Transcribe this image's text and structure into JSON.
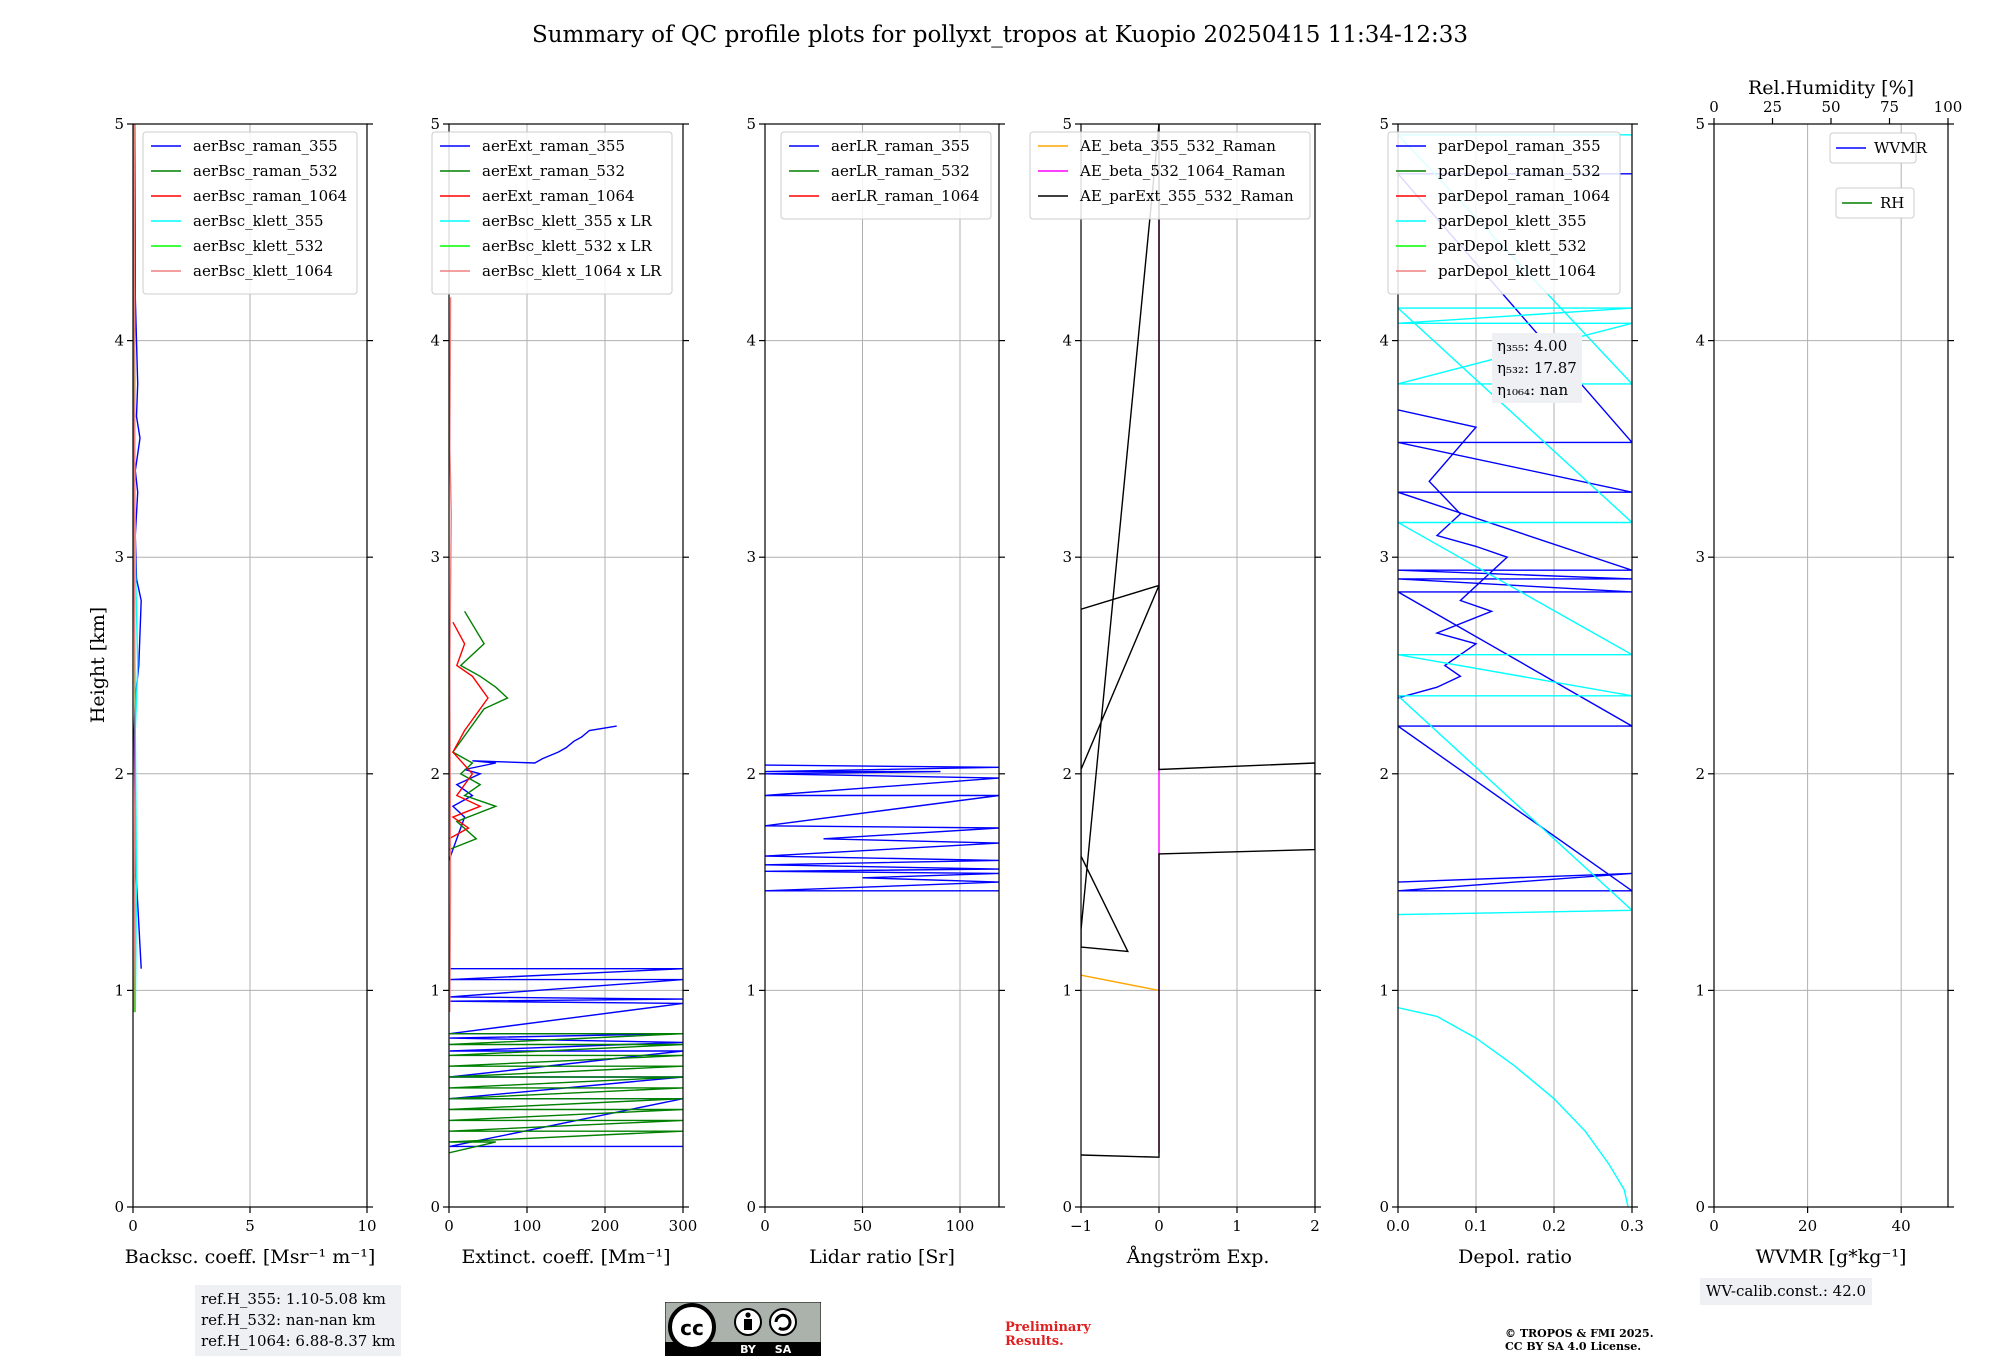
{
  "title": "Summary of QC profile plots for pollyxt_tropos at Kuopio 20250415 11:34-12:33",
  "colors": {
    "blue": "#0000ff",
    "green": "#008000",
    "red": "#ff0000",
    "cyan": "#00ffff",
    "lime": "#00ff00",
    "salmon": "#f08080",
    "orange": "#ffa500",
    "magenta": "#ff00ff",
    "black": "#000000"
  },
  "chart_data": [
    {
      "type": "line",
      "xlabel": "Backsc. coeff. [Msr⁻¹ m⁻¹]",
      "ylabel": "Height [km]",
      "xlim": [
        0,
        10
      ],
      "ylim": [
        0,
        5
      ],
      "xticks": [
        "0",
        "5",
        "10"
      ],
      "yticks": [
        "0",
        "1",
        "2",
        "3",
        "4",
        "5"
      ],
      "legend": [
        "aerBsc_raman_355",
        "aerBsc_raman_532",
        "aerBsc_raman_1064",
        "aerBsc_klett_355",
        "aerBsc_klett_532",
        "aerBsc_klett_1064"
      ],
      "series": [
        {
          "name": "aerBsc_raman_355",
          "color": "#0000ff",
          "x": [
            0.35,
            0.2,
            0.1,
            0.05,
            0.1,
            0.25,
            0.35,
            0.15,
            0.1,
            0.2,
            0.1,
            0.3,
            0.15,
            0.2,
            0.1,
            0.1
          ],
          "y": [
            1.1,
            1.4,
            1.6,
            2.2,
            2.35,
            2.5,
            2.8,
            2.9,
            3.1,
            3.3,
            3.4,
            3.55,
            3.65,
            3.8,
            4.2,
            5.0
          ]
        },
        {
          "name": "aerBsc_klett_355",
          "color": "#00ffff",
          "x": [
            0.1,
            0.15,
            0.1,
            0.2,
            0.1,
            0.05,
            0.1
          ],
          "y": [
            0.9,
            1.5,
            2.2,
            2.5,
            3.0,
            4.2,
            5.0
          ]
        },
        {
          "name": "aerBsc_klett_532",
          "color": "#00ff00",
          "x": [
            0.05,
            0.1,
            0.05,
            0.05
          ],
          "y": [
            0.9,
            2.0,
            3.0,
            5.0
          ]
        },
        {
          "name": "aerBsc_klett_1064",
          "color": "#f08080",
          "x": [
            0.1,
            0.05,
            0.1,
            0.05,
            0.08,
            0.05
          ],
          "y": [
            0.9,
            1.5,
            2.2,
            3.0,
            3.8,
            5.0
          ]
        }
      ],
      "annotation": [
        "ref.H_355: 1.10-5.08 km",
        "ref.H_532: nan-nan km",
        "ref.H_1064: 6.88-8.37 km"
      ]
    },
    {
      "type": "line",
      "xlabel": "Extinct. coeff. [Mm⁻¹]",
      "xlim": [
        0,
        300
      ],
      "ylim": [
        0,
        5
      ],
      "xticks": [
        "0",
        "100",
        "200",
        "300"
      ],
      "yticks": [
        "0",
        "1",
        "2",
        "3",
        "4",
        "5"
      ],
      "legend": [
        "aerExt_raman_355",
        "aerExt_raman_532",
        "aerExt_raman_1064",
        "aerBsc_klett_355 x LR",
        "aerBsc_klett_532 x LR",
        "aerBsc_klett_1064 x LR"
      ],
      "series": [
        {
          "name": "aerExt_raman_355",
          "color": "#0000ff",
          "x": [
            1,
            300,
            1,
            300,
            1,
            300,
            1,
            300,
            1,
            300,
            1,
            300,
            1,
            300,
            1,
            300,
            1,
            300,
            1,
            300
          ],
          "y": [
            1.1,
            1.1,
            1.05,
            1.05,
            0.97,
            0.96,
            0.95,
            0.94,
            0.8,
            0.8,
            0.78,
            0.76,
            0.72,
            0.72,
            0.6,
            0.6,
            0.5,
            0.5,
            0.28,
            0.28
          ]
        },
        {
          "name": "aerExt_raman_355_upper",
          "color": "#0000ff",
          "x": [
            0,
            10,
            20,
            5,
            30,
            10,
            40,
            20,
            60,
            30,
            110,
            120,
            140,
            150,
            160,
            170,
            180,
            215
          ],
          "y": [
            1.6,
            1.7,
            1.8,
            1.85,
            1.9,
            1.95,
            2.0,
            2.02,
            2.05,
            2.06,
            2.05,
            2.07,
            2.1,
            2.12,
            2.15,
            2.17,
            2.2,
            2.22
          ]
        },
        {
          "name": "aerExt_raman_532",
          "color": "#008000",
          "x": [
            0,
            300,
            0,
            300,
            0,
            300,
            0,
            300,
            0,
            300,
            0,
            300,
            0,
            300,
            0,
            300,
            0,
            300,
            0,
            300,
            0,
            60,
            0
          ],
          "y": [
            0.8,
            0.8,
            0.75,
            0.75,
            0.7,
            0.7,
            0.65,
            0.65,
            0.6,
            0.6,
            0.55,
            0.55,
            0.5,
            0.5,
            0.45,
            0.45,
            0.4,
            0.4,
            0.35,
            0.35,
            0.3,
            0.3,
            0.25
          ]
        },
        {
          "name": "aerExt_raman_532_upper",
          "color": "#008000",
          "x": [
            0,
            35,
            10,
            60,
            20,
            40,
            15,
            30,
            5,
            45,
            75,
            60,
            40,
            15,
            45,
            20
          ],
          "y": [
            1.65,
            1.7,
            1.78,
            1.85,
            1.9,
            1.95,
            2.0,
            2.05,
            2.1,
            2.3,
            2.35,
            2.4,
            2.45,
            2.5,
            2.6,
            2.75
          ]
        },
        {
          "name": "aerExt_raman_1064",
          "color": "#ff0000",
          "x": [
            0,
            25,
            5,
            40,
            10,
            30,
            5,
            20,
            50,
            30,
            10,
            20,
            5
          ],
          "y": [
            1.7,
            1.75,
            1.8,
            1.85,
            1.9,
            2.0,
            2.1,
            2.2,
            2.35,
            2.45,
            2.5,
            2.6,
            2.7
          ]
        },
        {
          "name": "aerBsc_klett_1064 x LR",
          "color": "#f08080",
          "x": [
            1,
            2,
            1,
            3,
            1,
            2
          ],
          "y": [
            0.9,
            1.5,
            2.5,
            3.2,
            3.5,
            4.2
          ]
        }
      ]
    },
    {
      "type": "line",
      "xlabel": "Lidar ratio [Sr]",
      "xlim": [
        0,
        120
      ],
      "ylim": [
        0,
        5
      ],
      "xticks": [
        "0",
        "50",
        "100"
      ],
      "yticks": [
        "0",
        "1",
        "2",
        "3",
        "4",
        "5"
      ],
      "legend": [
        "aerLR_raman_355",
        "aerLR_raman_532",
        "aerLR_raman_1064"
      ],
      "series": [
        {
          "name": "aerLR_raman_355",
          "color": "#0000ff",
          "x": [
            0,
            120,
            0,
            90,
            0,
            120,
            0,
            120,
            0,
            120,
            30,
            120,
            0,
            120,
            0,
            120,
            0,
            120,
            50,
            120,
            0,
            120
          ],
          "y": [
            2.04,
            2.03,
            2.01,
            2.01,
            2.0,
            1.98,
            1.9,
            1.9,
            1.76,
            1.75,
            1.7,
            1.68,
            1.62,
            1.6,
            1.58,
            1.56,
            1.55,
            1.54,
            1.52,
            1.5,
            1.46,
            1.46
          ]
        }
      ]
    },
    {
      "type": "line",
      "xlabel": "Ångström Exp.",
      "xlim": [
        -1,
        2
      ],
      "ylim": [
        0,
        5
      ],
      "xticks": [
        "−1",
        "0",
        "1",
        "2"
      ],
      "yticks": [
        "0",
        "1",
        "2",
        "3",
        "4",
        "5"
      ],
      "legend": [
        "AE_beta_355_532_Raman",
        "AE_beta_532_1064_Raman",
        "AE_parExt_355_532_Raman"
      ],
      "series": [
        {
          "name": "AE_beta_355_532_Raman",
          "color": "#ffa500",
          "x": [
            -1,
            0
          ],
          "y": [
            1.07,
            1.0
          ]
        },
        {
          "name": "AE_beta_532_1064_Raman",
          "color": "#ff00ff",
          "x": [
            0,
            0
          ],
          "y": [
            0.25,
            5.0
          ]
        },
        {
          "name": "AE_parExt_355_532_Raman",
          "color": "#000000",
          "x": [
            -1,
            0,
            0,
            2,
            2,
            0,
            0,
            -1,
            -1,
            -0.4,
            -1,
            -1,
            0,
            0,
            -1
          ],
          "y": [
            0.24,
            0.23,
            1.63,
            1.65,
            2.05,
            2.02,
            2.87,
            2.76,
            1.62,
            1.18,
            1.2,
            1.28,
            5.0,
            2.87,
            2.02
          ]
        }
      ]
    },
    {
      "type": "line",
      "xlabel": "Depol. ratio",
      "xlim": [
        0,
        0.3
      ],
      "ylim": [
        0,
        5
      ],
      "xticks": [
        "0.0",
        "0.1",
        "0.2",
        "0.3"
      ],
      "yticks": [
        "0",
        "1",
        "2",
        "3",
        "4",
        "5"
      ],
      "legend": [
        "parDepol_raman_355",
        "parDepol_raman_532",
        "parDepol_raman_1064",
        "parDepol_klett_355",
        "parDepol_klett_532",
        "parDepol_klett_1064"
      ],
      "annotation": [
        "η₃₅₅: 4.00",
        "η₅₃₂: 17.87",
        "η₁₀₆₄: nan"
      ],
      "series": [
        {
          "name": "parDepol_klett_355",
          "color": "#00ffff",
          "x": [
            0.0,
            0.05,
            0.1,
            0.15,
            0.2,
            0.24,
            0.27,
            0.29,
            0.295
          ],
          "y": [
            0.92,
            0.88,
            0.78,
            0.65,
            0.5,
            0.35,
            0.2,
            0.08,
            0.0
          ]
        },
        {
          "name": "parDepol_raman_355",
          "color": "#0000ff",
          "x": [
            0,
            0.3,
            0,
            0.3,
            0,
            0.3,
            0,
            0.3,
            0,
            0.3,
            0,
            0.3,
            0,
            0.3,
            0,
            0.3,
            0,
            0.3
          ],
          "y": [
            1.5,
            1.54,
            1.46,
            1.46,
            2.22,
            2.22,
            2.84,
            2.84,
            2.9,
            2.9,
            2.94,
            2.94,
            3.3,
            3.3,
            3.53,
            3.53,
            4.77,
            4.77
          ]
        },
        {
          "name": "parDepol_raman_355_noise",
          "color": "#0000ff",
          "x": [
            0,
            0.05,
            0.08,
            0.06,
            0.1,
            0.05,
            0.12,
            0.08,
            0.14,
            0.1,
            0.05,
            0.08,
            0.04,
            0.1,
            0.0
          ],
          "y": [
            2.35,
            2.4,
            2.45,
            2.5,
            2.6,
            2.65,
            2.75,
            2.8,
            3.0,
            3.05,
            3.1,
            3.2,
            3.35,
            3.6,
            3.68
          ]
        },
        {
          "name": "parDepol_klett_355_lines",
          "color": "#00ffff",
          "x": [
            0,
            0.3,
            0,
            0.3,
            0,
            0.3,
            0,
            0.3,
            0,
            0.3,
            0,
            0.3,
            0,
            0.3,
            0,
            0.3
          ],
          "y": [
            1.35,
            1.37,
            2.36,
            2.36,
            2.55,
            2.55,
            3.16,
            3.16,
            4.15,
            4.15,
            4.08,
            4.08,
            3.8,
            3.8,
            4.95,
            4.95
          ]
        }
      ]
    },
    {
      "type": "line",
      "xlabel": "WVMR [g*kg⁻¹]",
      "top_xlabel": "Rel.Humidity [%]",
      "xlim": [
        0,
        50
      ],
      "ylim": [
        0,
        5
      ],
      "xticks": [
        "0",
        "20",
        "40"
      ],
      "top_xticks": [
        "0",
        "25",
        "50",
        "75",
        "100"
      ],
      "yticks": [
        "0",
        "1",
        "2",
        "3",
        "4",
        "5"
      ],
      "legend": [
        "WVMR",
        "RH"
      ],
      "annotation": [
        "WV-calib.const.: 42.0"
      ],
      "series": []
    }
  ],
  "footer": {
    "preliminary_1": "Preliminary",
    "preliminary_2": "Results.",
    "copyright_1": "© TROPOS & FMI 2025.",
    "copyright_2": "CC BY SA 4.0 License.",
    "cc_by": "BY",
    "cc_sa": "SA"
  }
}
